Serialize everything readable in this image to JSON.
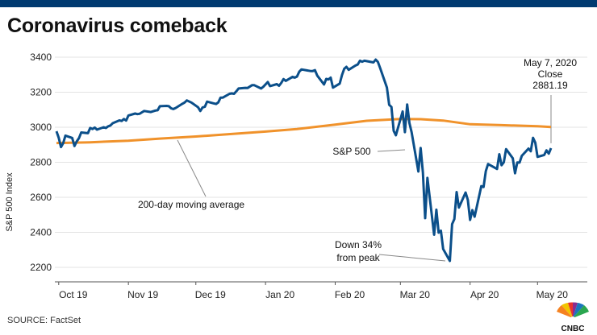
{
  "title": "Coronavirus comeback",
  "source": "SOURCE: FactSet",
  "brand": "CNBC",
  "colors": {
    "sp500": "#0b4f8a",
    "ma200": "#f0922b",
    "topbar": "#003a70"
  },
  "chart_data": {
    "type": "line",
    "ylabel": "S&P 500 Index",
    "ylim": [
      2100,
      3450
    ],
    "yticks": [
      2200,
      2400,
      2600,
      2800,
      3000,
      3200,
      3400
    ],
    "x_range": [
      "2019-10-01",
      "2020-05-12"
    ],
    "xticks": [
      {
        "label": "Oct 19",
        "date": "2019-10-01"
      },
      {
        "label": "Nov 19",
        "date": "2019-11-01"
      },
      {
        "label": "Dec 19",
        "date": "2019-12-01"
      },
      {
        "label": "Jan 20",
        "date": "2020-01-01"
      },
      {
        "label": "Feb 20",
        "date": "2020-02-01"
      },
      {
        "label": "Mar 20",
        "date": "2020-03-01"
      },
      {
        "label": "Apr 20",
        "date": "2020-04-01"
      },
      {
        "label": "May 20",
        "date": "2020-05-01"
      }
    ],
    "grid": "horizontal",
    "series": [
      {
        "name": "S&P 500",
        "x": [
          "2019-09-30",
          "2019-10-01",
          "2019-10-02",
          "2019-10-03",
          "2019-10-04",
          "2019-10-07",
          "2019-10-08",
          "2019-10-09",
          "2019-10-10",
          "2019-10-11",
          "2019-10-14",
          "2019-10-15",
          "2019-10-16",
          "2019-10-17",
          "2019-10-18",
          "2019-10-21",
          "2019-10-22",
          "2019-10-23",
          "2019-10-24",
          "2019-10-25",
          "2019-10-28",
          "2019-10-29",
          "2019-10-30",
          "2019-10-31",
          "2019-11-01",
          "2019-11-04",
          "2019-11-05",
          "2019-11-06",
          "2019-11-07",
          "2019-11-08",
          "2019-11-11",
          "2019-11-12",
          "2019-11-13",
          "2019-11-14",
          "2019-11-15",
          "2019-11-18",
          "2019-11-19",
          "2019-11-20",
          "2019-11-21",
          "2019-11-22",
          "2019-11-25",
          "2019-11-26",
          "2019-11-27",
          "2019-11-29",
          "2019-12-02",
          "2019-12-03",
          "2019-12-04",
          "2019-12-05",
          "2019-12-06",
          "2019-12-09",
          "2019-12-10",
          "2019-12-11",
          "2019-12-12",
          "2019-12-13",
          "2019-12-16",
          "2019-12-17",
          "2019-12-18",
          "2019-12-19",
          "2019-12-20",
          "2019-12-23",
          "2019-12-24",
          "2019-12-26",
          "2019-12-27",
          "2019-12-30",
          "2019-12-31",
          "2020-01-02",
          "2020-01-03",
          "2020-01-06",
          "2020-01-07",
          "2020-01-08",
          "2020-01-09",
          "2020-01-10",
          "2020-01-13",
          "2020-01-14",
          "2020-01-15",
          "2020-01-16",
          "2020-01-17",
          "2020-01-21",
          "2020-01-22",
          "2020-01-23",
          "2020-01-24",
          "2020-01-27",
          "2020-01-28",
          "2020-01-29",
          "2020-01-30",
          "2020-01-31",
          "2020-02-03",
          "2020-02-04",
          "2020-02-05",
          "2020-02-06",
          "2020-02-07",
          "2020-02-10",
          "2020-02-11",
          "2020-02-12",
          "2020-02-13",
          "2020-02-14",
          "2020-02-18",
          "2020-02-19",
          "2020-02-20",
          "2020-02-21",
          "2020-02-24",
          "2020-02-25",
          "2020-02-26",
          "2020-02-27",
          "2020-02-28",
          "2020-03-02",
          "2020-03-03",
          "2020-03-04",
          "2020-03-05",
          "2020-03-06",
          "2020-03-09",
          "2020-03-10",
          "2020-03-11",
          "2020-03-12",
          "2020-03-13",
          "2020-03-16",
          "2020-03-17",
          "2020-03-18",
          "2020-03-19",
          "2020-03-20",
          "2020-03-23",
          "2020-03-24",
          "2020-03-25",
          "2020-03-26",
          "2020-03-27",
          "2020-03-30",
          "2020-03-31",
          "2020-04-01",
          "2020-04-02",
          "2020-04-03",
          "2020-04-06",
          "2020-04-07",
          "2020-04-08",
          "2020-04-09",
          "2020-04-13",
          "2020-04-14",
          "2020-04-15",
          "2020-04-16",
          "2020-04-17",
          "2020-04-20",
          "2020-04-21",
          "2020-04-22",
          "2020-04-23",
          "2020-04-24",
          "2020-04-27",
          "2020-04-28",
          "2020-04-29",
          "2020-04-30",
          "2020-05-01",
          "2020-05-04",
          "2020-05-05",
          "2020-05-06",
          "2020-05-07"
        ],
        "values": [
          2977,
          2940,
          2887,
          2910,
          2952,
          2939,
          2893,
          2919,
          2938,
          2970,
          2966,
          2996,
          2990,
          2998,
          2986,
          3000,
          2996,
          3005,
          3010,
          3023,
          3039,
          3036,
          3047,
          3038,
          3067,
          3078,
          3075,
          3077,
          3085,
          3093,
          3087,
          3091,
          3095,
          3097,
          3120,
          3122,
          3120,
          3108,
          3104,
          3110,
          3134,
          3141,
          3153,
          3141,
          3114,
          3093,
          3113,
          3117,
          3146,
          3136,
          3133,
          3142,
          3169,
          3169,
          3191,
          3193,
          3191,
          3205,
          3221,
          3225,
          3224,
          3240,
          3240,
          3221,
          3231,
          3258,
          3235,
          3246,
          3237,
          3253,
          3275,
          3265,
          3288,
          3283,
          3289,
          3317,
          3330,
          3321,
          3321,
          3326,
          3295,
          3244,
          3276,
          3273,
          3283,
          3226,
          3249,
          3298,
          3334,
          3345,
          3328,
          3352,
          3358,
          3380,
          3374,
          3380,
          3370,
          3386,
          3373,
          3338,
          3226,
          3128,
          3116,
          2979,
          2954,
          3090,
          2972,
          3130,
          3024,
          2972,
          2747,
          2882,
          2741,
          2481,
          2711,
          2386,
          2529,
          2398,
          2409,
          2305,
          2237,
          2447,
          2476,
          2630,
          2541,
          2627,
          2585,
          2471,
          2527,
          2489,
          2664,
          2659,
          2750,
          2790,
          2762,
          2846,
          2783,
          2800,
          2875,
          2823,
          2737,
          2799,
          2798,
          2837,
          2878,
          2863,
          2940,
          2912,
          2831,
          2842,
          2868,
          2849,
          2881
        ]
      },
      {
        "name": "200-day moving average",
        "x": [
          "2019-09-30",
          "2019-10-15",
          "2019-11-01",
          "2019-11-15",
          "2019-12-01",
          "2019-12-15",
          "2020-01-01",
          "2020-01-15",
          "2020-02-01",
          "2020-02-15",
          "2020-03-01",
          "2020-03-10",
          "2020-03-20",
          "2020-04-01",
          "2020-04-15",
          "2020-05-01",
          "2020-05-07"
        ],
        "values": [
          2910,
          2914,
          2923,
          2935,
          2947,
          2960,
          2975,
          2990,
          3015,
          3037,
          3047,
          3046,
          3038,
          3017,
          3012,
          3006,
          3001
        ]
      }
    ],
    "annotations": [
      {
        "id": "latest",
        "lines": [
          "May 7, 2020",
          "Close",
          "2881.19"
        ],
        "date": "2020-05-07",
        "value": 2881.19
      },
      {
        "id": "sp500",
        "lines": [
          "S&P 500"
        ]
      },
      {
        "id": "ma",
        "lines": [
          "200-day moving average"
        ]
      },
      {
        "id": "drop",
        "lines": [
          "Down 34%",
          "from peak"
        ]
      }
    ]
  }
}
